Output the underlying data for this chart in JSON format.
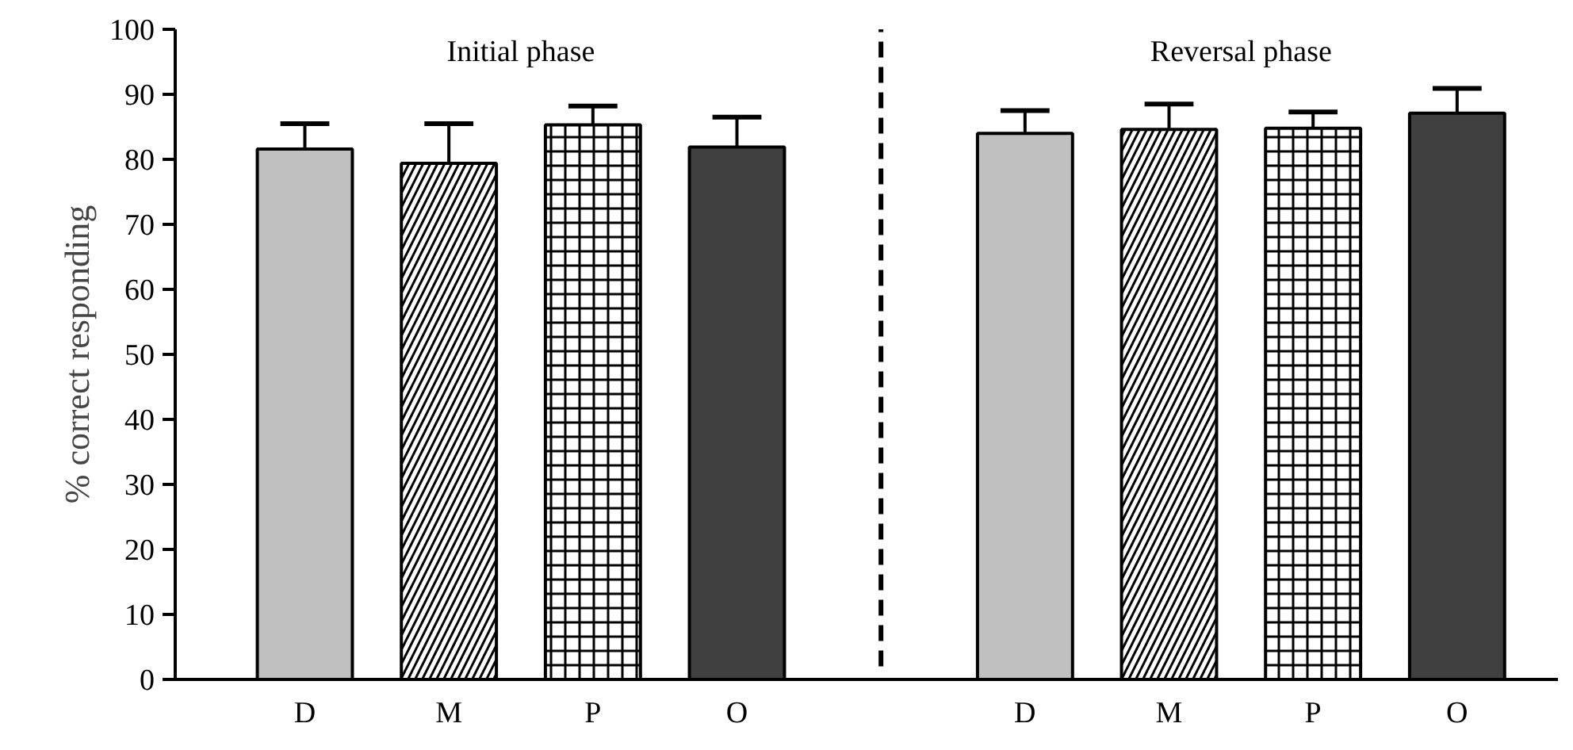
{
  "chart_data": {
    "type": "bar",
    "ylabel": "% correct responding",
    "categories": [
      "D",
      "M",
      "P",
      "O",
      null,
      "D",
      "M",
      "P",
      "O"
    ],
    "values": [
      81.6,
      79.4,
      85.3,
      81.9,
      null,
      84.0,
      84.6,
      84.8,
      87.1
    ],
    "colors": [
      "#c0c0c0",
      "#ffffff",
      "#ffffff",
      "#404040",
      "#ffffff",
      "#c0c0c0",
      "#ffffff",
      "#ffffff",
      "#404040"
    ],
    "errors": [
      [
        81.6,
        85.5
      ],
      [
        79.4,
        85.5
      ],
      [
        85.3,
        88.2
      ],
      [
        81.9,
        86.5
      ],
      null,
      [
        84.0,
        87.5
      ],
      [
        84.6,
        88.5
      ],
      [
        84.8,
        87.3
      ],
      [
        87.1,
        90.9
      ]
    ],
    "ylim": [
      0,
      100
    ],
    "yticks": [
      0,
      10,
      20,
      30,
      40,
      50,
      60,
      70,
      80,
      90,
      100
    ],
    "ref_lines": [
      {
        "axis": "x",
        "value": null,
        "line_style": "dashed",
        "color": "#000000"
      }
    ],
    "annotations": [
      "Initial phase",
      "Reversal phase"
    ]
  }
}
